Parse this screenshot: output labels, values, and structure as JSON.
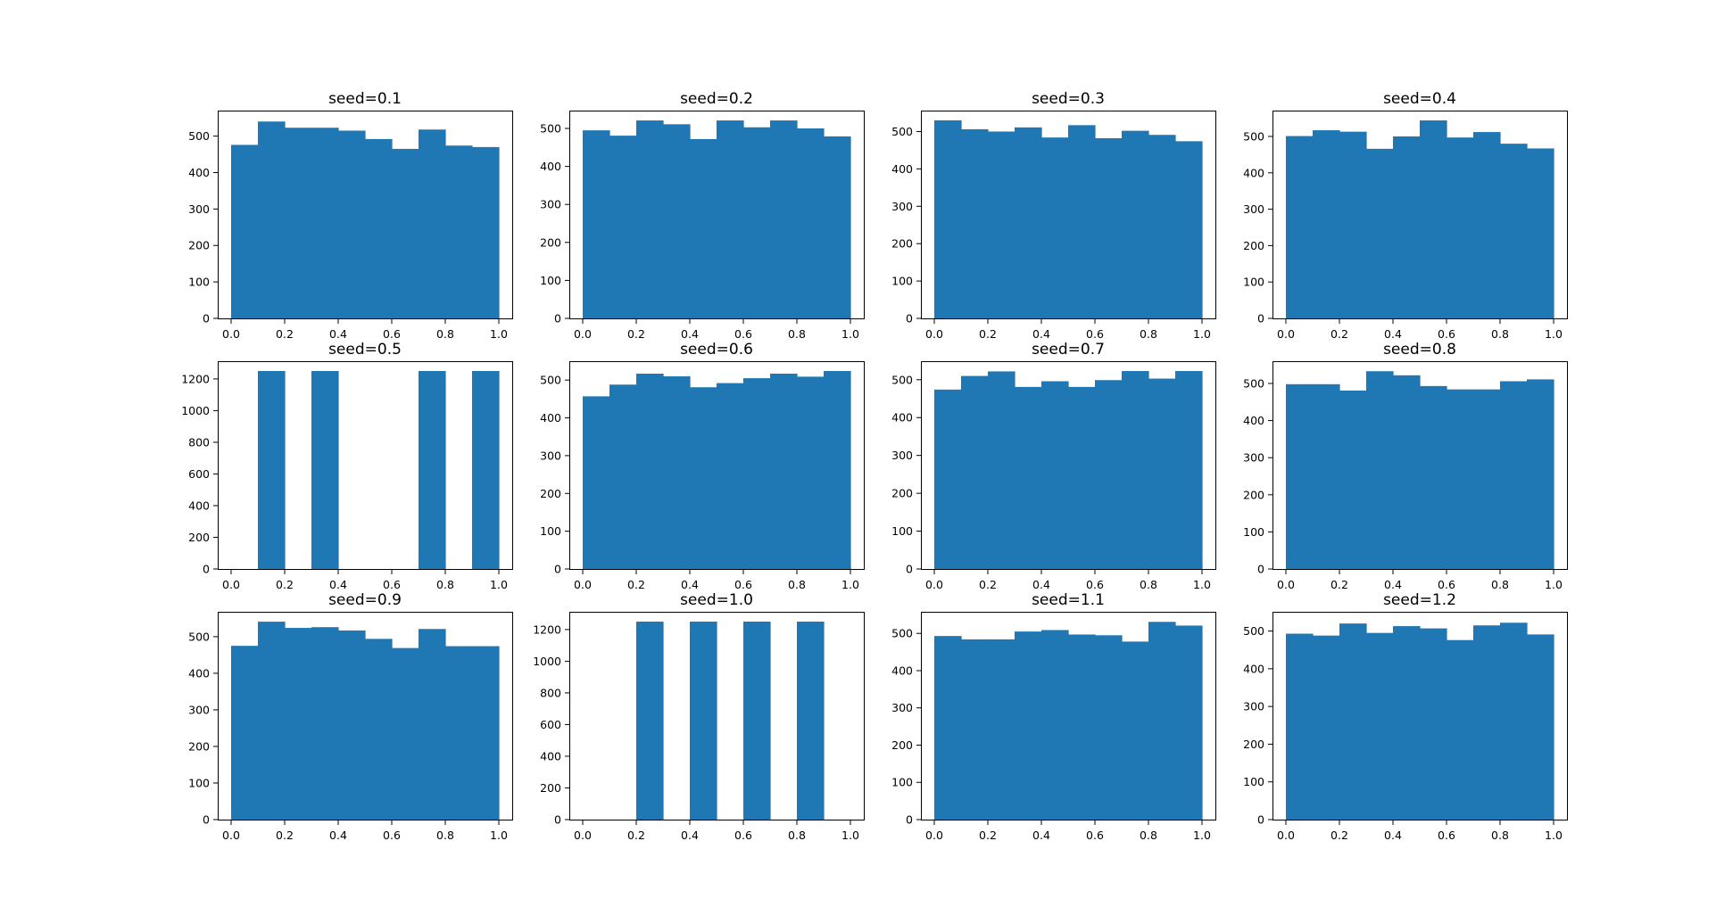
{
  "colors": {
    "bar": "#1f77b4",
    "background": "#ffffff",
    "axis": "#000000"
  },
  "chart_data": [
    {
      "type": "bar",
      "title": "seed=0.1",
      "bin_edges": [
        0.0,
        0.1,
        0.2,
        0.3,
        0.4,
        0.5,
        0.6,
        0.7,
        0.8,
        0.9,
        1.0
      ],
      "values": [
        476,
        540,
        523,
        523,
        515,
        492,
        465,
        518,
        474,
        470
      ],
      "xlim": [
        -0.05,
        1.05
      ],
      "ylim": [
        0,
        570
      ],
      "xticks": [
        0.0,
        0.2,
        0.4,
        0.6,
        0.8,
        1.0
      ],
      "xtick_labels": [
        "0.0",
        "0.2",
        "0.4",
        "0.6",
        "0.8",
        "1.0"
      ],
      "yticks": [
        0,
        100,
        200,
        300,
        400,
        500
      ],
      "ytick_labels": [
        "0",
        "100",
        "200",
        "300",
        "400",
        "500"
      ]
    },
    {
      "type": "bar",
      "title": "seed=0.2",
      "bin_edges": [
        0.0,
        0.1,
        0.2,
        0.3,
        0.4,
        0.5,
        0.6,
        0.7,
        0.8,
        0.9,
        1.0
      ],
      "values": [
        495,
        481,
        521,
        511,
        472,
        521,
        503,
        521,
        500,
        479
      ],
      "xlim": [
        -0.05,
        1.05
      ],
      "ylim": [
        0,
        547
      ],
      "xticks": [
        0.0,
        0.2,
        0.4,
        0.6,
        0.8,
        1.0
      ],
      "xtick_labels": [
        "0.0",
        "0.2",
        "0.4",
        "0.6",
        "0.8",
        "1.0"
      ],
      "yticks": [
        0,
        100,
        200,
        300,
        400,
        500
      ],
      "ytick_labels": [
        "0",
        "100",
        "200",
        "300",
        "400",
        "500"
      ]
    },
    {
      "type": "bar",
      "title": "seed=0.3",
      "bin_edges": [
        0.0,
        0.1,
        0.2,
        0.3,
        0.4,
        0.5,
        0.6,
        0.7,
        0.8,
        0.9,
        1.0
      ],
      "values": [
        530,
        506,
        500,
        511,
        484,
        517,
        482,
        502,
        491,
        474
      ],
      "xlim": [
        -0.05,
        1.05
      ],
      "ylim": [
        0,
        556
      ],
      "xticks": [
        0.0,
        0.2,
        0.4,
        0.6,
        0.8,
        1.0
      ],
      "xtick_labels": [
        "0.0",
        "0.2",
        "0.4",
        "0.6",
        "0.8",
        "1.0"
      ],
      "yticks": [
        0,
        100,
        200,
        300,
        400,
        500
      ],
      "ytick_labels": [
        "0",
        "100",
        "200",
        "300",
        "400",
        "500"
      ]
    },
    {
      "type": "bar",
      "title": "seed=0.4",
      "bin_edges": [
        0.0,
        0.1,
        0.2,
        0.3,
        0.4,
        0.5,
        0.6,
        0.7,
        0.8,
        0.9,
        1.0
      ],
      "values": [
        501,
        517,
        513,
        466,
        500,
        544,
        497,
        512,
        480,
        467
      ],
      "xlim": [
        -0.05,
        1.05
      ],
      "ylim": [
        0,
        571
      ],
      "xticks": [
        0.0,
        0.2,
        0.4,
        0.6,
        0.8,
        1.0
      ],
      "xtick_labels": [
        "0.0",
        "0.2",
        "0.4",
        "0.6",
        "0.8",
        "1.0"
      ],
      "yticks": [
        0,
        100,
        200,
        300,
        400,
        500
      ],
      "ytick_labels": [
        "0",
        "100",
        "200",
        "300",
        "400",
        "500"
      ]
    },
    {
      "type": "bar",
      "title": "seed=0.5",
      "bin_edges": [
        0.0,
        0.1,
        0.2,
        0.3,
        0.4,
        0.5,
        0.6,
        0.7,
        0.8,
        0.9,
        1.0
      ],
      "values": [
        0,
        1250,
        0,
        1250,
        0,
        0,
        0,
        1250,
        0,
        1250
      ],
      "xlim": [
        -0.05,
        1.05
      ],
      "ylim": [
        0,
        1312
      ],
      "xticks": [
        0.0,
        0.2,
        0.4,
        0.6,
        0.8,
        1.0
      ],
      "xtick_labels": [
        "0.0",
        "0.2",
        "0.4",
        "0.6",
        "0.8",
        "1.0"
      ],
      "yticks": [
        0,
        200,
        400,
        600,
        800,
        1000,
        1200
      ],
      "ytick_labels": [
        "0",
        "200",
        "400",
        "600",
        "800",
        "1000",
        "1200"
      ]
    },
    {
      "type": "bar",
      "title": "seed=0.6",
      "bin_edges": [
        0.0,
        0.1,
        0.2,
        0.3,
        0.4,
        0.5,
        0.6,
        0.7,
        0.8,
        0.9,
        1.0
      ],
      "values": [
        457,
        488,
        517,
        510,
        481,
        492,
        505,
        517,
        509,
        524
      ],
      "xlim": [
        -0.05,
        1.05
      ],
      "ylim": [
        0,
        550
      ],
      "xticks": [
        0.0,
        0.2,
        0.4,
        0.6,
        0.8,
        1.0
      ],
      "xtick_labels": [
        "0.0",
        "0.2",
        "0.4",
        "0.6",
        "0.8",
        "1.0"
      ],
      "yticks": [
        0,
        100,
        200,
        300,
        400,
        500
      ],
      "ytick_labels": [
        "0",
        "100",
        "200",
        "300",
        "400",
        "500"
      ]
    },
    {
      "type": "bar",
      "title": "seed=0.7",
      "bin_edges": [
        0.0,
        0.1,
        0.2,
        0.3,
        0.4,
        0.5,
        0.6,
        0.7,
        0.8,
        0.9,
        1.0
      ],
      "values": [
        474,
        510,
        522,
        481,
        496,
        481,
        499,
        523,
        503,
        523
      ],
      "xlim": [
        -0.05,
        1.05
      ],
      "ylim": [
        0,
        549
      ],
      "xticks": [
        0.0,
        0.2,
        0.4,
        0.6,
        0.8,
        1.0
      ],
      "xtick_labels": [
        "0.0",
        "0.2",
        "0.4",
        "0.6",
        "0.8",
        "1.0"
      ],
      "yticks": [
        0,
        100,
        200,
        300,
        400,
        500
      ],
      "ytick_labels": [
        "0",
        "100",
        "200",
        "300",
        "400",
        "500"
      ]
    },
    {
      "type": "bar",
      "title": "seed=0.8",
      "bin_edges": [
        0.0,
        0.1,
        0.2,
        0.3,
        0.4,
        0.5,
        0.6,
        0.7,
        0.8,
        0.9,
        1.0
      ],
      "values": [
        498,
        498,
        481,
        533,
        522,
        493,
        484,
        484,
        506,
        511
      ],
      "xlim": [
        -0.05,
        1.05
      ],
      "ylim": [
        0,
        560
      ],
      "xticks": [
        0.0,
        0.2,
        0.4,
        0.6,
        0.8,
        1.0
      ],
      "xtick_labels": [
        "0.0",
        "0.2",
        "0.4",
        "0.6",
        "0.8",
        "1.0"
      ],
      "yticks": [
        0,
        100,
        200,
        300,
        400,
        500
      ],
      "ytick_labels": [
        "0",
        "100",
        "200",
        "300",
        "400",
        "500"
      ]
    },
    {
      "type": "bar",
      "title": "seed=0.9",
      "bin_edges": [
        0.0,
        0.1,
        0.2,
        0.3,
        0.4,
        0.5,
        0.6,
        0.7,
        0.8,
        0.9,
        1.0
      ],
      "values": [
        475,
        541,
        524,
        526,
        517,
        494,
        469,
        521,
        474,
        474
      ],
      "xlim": [
        -0.05,
        1.05
      ],
      "ylim": [
        0,
        568
      ],
      "xticks": [
        0.0,
        0.2,
        0.4,
        0.6,
        0.8,
        1.0
      ],
      "xtick_labels": [
        "0.0",
        "0.2",
        "0.4",
        "0.6",
        "0.8",
        "1.0"
      ],
      "yticks": [
        0,
        100,
        200,
        300,
        400,
        500
      ],
      "ytick_labels": [
        "0",
        "100",
        "200",
        "300",
        "400",
        "500"
      ]
    },
    {
      "type": "bar",
      "title": "seed=1.0",
      "bin_edges": [
        0.0,
        0.1,
        0.2,
        0.3,
        0.4,
        0.5,
        0.6,
        0.7,
        0.8,
        0.9,
        1.0
      ],
      "values": [
        0,
        0,
        1250,
        0,
        1250,
        0,
        1250,
        0,
        1250,
        0
      ],
      "xlim": [
        -0.05,
        1.05
      ],
      "ylim": [
        0,
        1312
      ],
      "xticks": [
        0.0,
        0.2,
        0.4,
        0.6,
        0.8,
        1.0
      ],
      "xtick_labels": [
        "0.0",
        "0.2",
        "0.4",
        "0.6",
        "0.8",
        "1.0"
      ],
      "yticks": [
        0,
        200,
        400,
        600,
        800,
        1000,
        1200
      ],
      "ytick_labels": [
        "0",
        "200",
        "400",
        "600",
        "800",
        "1000",
        "1200"
      ]
    },
    {
      "type": "bar",
      "title": "seed=1.1",
      "bin_edges": [
        0.0,
        0.1,
        0.2,
        0.3,
        0.4,
        0.5,
        0.6,
        0.7,
        0.8,
        0.9,
        1.0
      ],
      "values": [
        493,
        484,
        484,
        505,
        509,
        497,
        495,
        478,
        531,
        521
      ],
      "xlim": [
        -0.05,
        1.05
      ],
      "ylim": [
        0,
        558
      ],
      "xticks": [
        0.0,
        0.2,
        0.4,
        0.6,
        0.8,
        1.0
      ],
      "xtick_labels": [
        "0.0",
        "0.2",
        "0.4",
        "0.6",
        "0.8",
        "1.0"
      ],
      "yticks": [
        0,
        100,
        200,
        300,
        400,
        500
      ],
      "ytick_labels": [
        "0",
        "100",
        "200",
        "300",
        "400",
        "500"
      ]
    },
    {
      "type": "bar",
      "title": "seed=1.2",
      "bin_edges": [
        0.0,
        0.1,
        0.2,
        0.3,
        0.4,
        0.5,
        0.6,
        0.7,
        0.8,
        0.9,
        1.0
      ],
      "values": [
        493,
        488,
        520,
        495,
        513,
        507,
        476,
        515,
        522,
        491
      ],
      "xlim": [
        -0.05,
        1.05
      ],
      "ylim": [
        0,
        551
      ],
      "xticks": [
        0.0,
        0.2,
        0.4,
        0.6,
        0.8,
        1.0
      ],
      "xtick_labels": [
        "0.0",
        "0.2",
        "0.4",
        "0.6",
        "0.8",
        "1.0"
      ],
      "yticks": [
        0,
        100,
        200,
        300,
        400,
        500
      ],
      "ytick_labels": [
        "0",
        "100",
        "200",
        "300",
        "400",
        "500"
      ]
    }
  ]
}
